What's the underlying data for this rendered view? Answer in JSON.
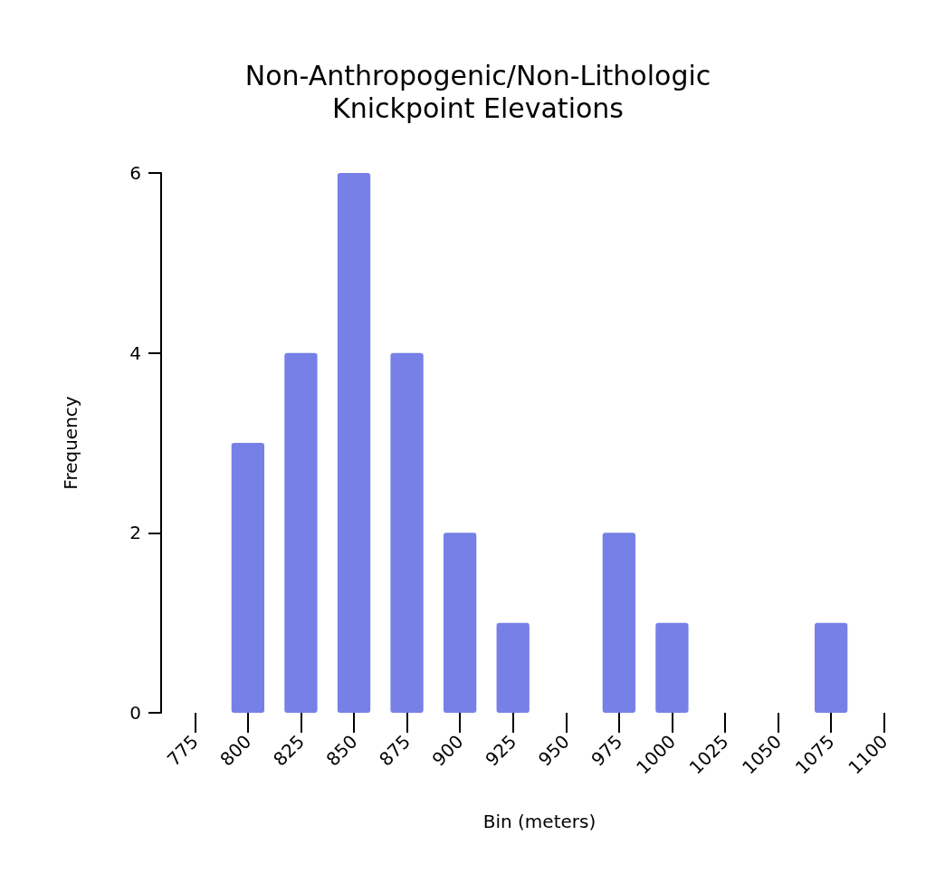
{
  "chart_data": {
    "type": "bar",
    "title": "Non-Anthropogenic/Non-Lithologic\nKnickpoint Elevations",
    "xlabel": "Bin (meters)",
    "ylabel": "Frequency",
    "categories": [
      "775",
      "800",
      "825",
      "850",
      "875",
      "900",
      "925",
      "950",
      "975",
      "1000",
      "1025",
      "1050",
      "1075",
      "1100"
    ],
    "values": [
      0,
      3,
      4,
      6,
      4,
      2,
      1,
      0,
      2,
      1,
      0,
      0,
      1,
      0
    ],
    "color": "#7680e6",
    "ylim": [
      0,
      6
    ],
    "yticks": [
      0,
      2,
      4,
      6
    ],
    "grid": false
  }
}
